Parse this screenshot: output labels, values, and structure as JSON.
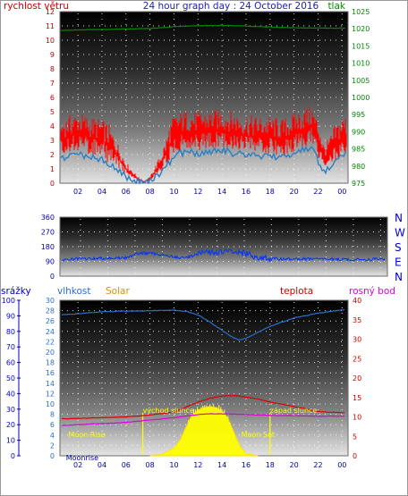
{
  "colors": {
    "wind": "#ff0000",
    "gust": "#2a7fc4",
    "pressure": "#008800",
    "direction": "#0033ff",
    "humidity": "#2a6fd0",
    "temperature": "#dd0000",
    "dewpoint": "#dd00dd",
    "solar": "#ffff00",
    "label_yellow": "#ffff00",
    "left_axis_blue": "#0000cc"
  },
  "chart_data": [
    {
      "type": "line",
      "title": "24 hour graph day : 24 October 2016",
      "left_axis_label": "rychlost větru",
      "right_axis_label": "tlak",
      "ylim_left": [
        0,
        12
      ],
      "yticks_left": [
        0,
        1,
        2,
        3,
        4,
        5,
        6,
        7,
        8,
        9,
        10,
        11,
        12
      ],
      "ylim_right": [
        975,
        1025
      ],
      "yticks_right": [
        975,
        980,
        985,
        990,
        995,
        1000,
        1005,
        1010,
        1015,
        1020,
        1025
      ],
      "x_tick_labels": [
        "02",
        "04",
        "06",
        "08",
        "10",
        "12",
        "14",
        "16",
        "18",
        "20",
        "22",
        "00"
      ],
      "x_tick_hours": [
        2,
        4,
        6,
        8,
        10,
        12,
        14,
        16,
        18,
        20,
        22,
        24
      ],
      "xlim_hours": [
        0.5,
        24.5
      ],
      "grid": true,
      "series": [
        {
          "key": "wind",
          "x": [
            0.5,
            1,
            2,
            3,
            4,
            5,
            6,
            7,
            7.5,
            8,
            9,
            10,
            11,
            12,
            13,
            14,
            15,
            16,
            17,
            18,
            19,
            20,
            21,
            21.5,
            22,
            22.5,
            23,
            24,
            24.5
          ],
          "y": [
            3.0,
            3.2,
            3.5,
            3.2,
            3.0,
            2.3,
            1.0,
            0.3,
            0.1,
            0.3,
            1.5,
            3.3,
            3.6,
            3.5,
            3.6,
            3.7,
            3.5,
            3.3,
            3.2,
            3.2,
            3.0,
            3.4,
            3.8,
            3.9,
            3.0,
            1.8,
            2.2,
            3.2,
            3.3
          ]
        },
        {
          "key": "gust",
          "x": [
            0.5,
            1,
            2,
            3,
            4,
            5,
            6,
            7,
            7.5,
            8,
            9,
            10,
            11,
            12,
            13,
            14,
            15,
            16,
            17,
            18,
            19,
            20,
            21,
            21.5,
            22,
            22.5,
            23,
            24,
            24.5
          ],
          "y": [
            1.7,
            1.8,
            2.0,
            1.9,
            1.7,
            1.2,
            0.4,
            0.1,
            0.0,
            0.1,
            0.8,
            1.9,
            2.2,
            2.1,
            2.2,
            2.3,
            2.1,
            2.0,
            1.9,
            1.9,
            1.8,
            2.1,
            2.4,
            2.4,
            1.6,
            0.8,
            1.2,
            1.9,
            2.0
          ]
        },
        {
          "key": "pressure",
          "x": [
            0.5,
            4,
            8,
            10,
            12,
            14,
            16,
            18,
            20,
            22,
            24.5
          ],
          "y": [
            1019.5,
            1019.8,
            1020.1,
            1020.6,
            1020.9,
            1021.0,
            1020.8,
            1020.5,
            1020.3,
            1020.2,
            1020.2
          ]
        }
      ]
    },
    {
      "type": "scatter",
      "right_axis_labels": [
        "N",
        "W",
        "S",
        "E",
        "N"
      ],
      "ylim": [
        0,
        360
      ],
      "yticks": [
        0,
        90,
        180,
        270,
        360
      ],
      "xlim_hours": [
        0.5,
        24.5
      ],
      "grid": true,
      "series": [
        {
          "key": "direction",
          "x": [
            0.5,
            2,
            4,
            5.5,
            6,
            7,
            8,
            9,
            9.5,
            10,
            11,
            12,
            13,
            14,
            15,
            16,
            18,
            20,
            22,
            24.5
          ],
          "y": [
            100,
            105,
            110,
            112,
            140,
            140,
            130,
            115,
            110,
            120,
            145,
            145,
            150,
            140,
            115,
            105,
            105,
            105,
            100,
            105
          ]
        }
      ]
    },
    {
      "type": "line",
      "labels": {
        "rain": "srážky",
        "humidity": "vlhkost",
        "solar": "Solar",
        "temperature": "teplota",
        "dewpoint": "rosný bod"
      },
      "ylim_rain": [
        0,
        100
      ],
      "yticks_rain": [
        0,
        10,
        20,
        30,
        40,
        50,
        60,
        70,
        80,
        90,
        100
      ],
      "ylim_left": [
        0,
        30
      ],
      "yticks_left": [
        0,
        2,
        4,
        6,
        8,
        10,
        12,
        14,
        16,
        18,
        20,
        22,
        24,
        26,
        28,
        30
      ],
      "ylim_right": [
        0,
        40
      ],
      "yticks_right": [
        0,
        5,
        10,
        15,
        20,
        25,
        30,
        35,
        40
      ],
      "x_tick_labels": [
        "02",
        "04",
        "06",
        "08",
        "10",
        "12",
        "14",
        "16",
        "18",
        "20",
        "22",
        "00"
      ],
      "x_tick_hours": [
        2,
        4,
        6,
        8,
        10,
        12,
        14,
        16,
        18,
        20,
        22,
        24
      ],
      "xlim_hours": [
        0.5,
        24.5
      ],
      "grid": true,
      "annotations": [
        {
          "text": "Moon Rise",
          "hour": 1.2,
          "value_left": 3.6
        },
        {
          "text": "východ slunce",
          "hour": 7.4,
          "value_left": 8.3
        },
        {
          "text": "západ slunce",
          "hour": 18.0,
          "value_left": 8.3
        },
        {
          "text": "Moon Set",
          "hour": 15.6,
          "value_left": 3.6
        },
        {
          "text": "Moonrise",
          "hour": 1.0,
          "value_left": -0.9
        }
      ],
      "markers": [
        {
          "key": "sunrise",
          "hour": 7.4
        },
        {
          "key": "sunset",
          "hour": 18.0
        }
      ],
      "series": [
        {
          "key": "humidity",
          "axis": "left",
          "x": [
            0.5,
            2,
            4,
            6,
            8,
            10,
            11,
            12,
            13,
            14,
            15,
            15.5,
            16,
            17,
            18,
            20,
            22,
            24.5
          ],
          "y": [
            27.2,
            27.4,
            27.8,
            27.9,
            28.0,
            28.1,
            27.9,
            27.2,
            25.8,
            24.2,
            22.7,
            22.3,
            22.7,
            23.8,
            25.0,
            26.6,
            27.5,
            28.3
          ]
        },
        {
          "key": "temperature",
          "axis": "right",
          "x": [
            0.5,
            2,
            4,
            6,
            8,
            10,
            11,
            12,
            13,
            14,
            15,
            16,
            17,
            18,
            20,
            22,
            24.5
          ],
          "y": [
            9.5,
            9.6,
            9.8,
            10.0,
            10.5,
            11.2,
            12.5,
            13.8,
            14.8,
            15.4,
            15.5,
            15.1,
            14.6,
            13.8,
            12.7,
            11.4,
            11.0
          ]
        },
        {
          "key": "dewpoint",
          "axis": "right",
          "x": [
            0.5,
            2,
            4,
            6,
            8,
            10,
            11,
            12,
            13,
            14,
            15,
            16,
            17,
            18,
            20,
            22,
            24.5
          ],
          "y": [
            7.8,
            8.0,
            8.3,
            8.6,
            9.2,
            9.8,
            10.2,
            10.6,
            10.8,
            10.8,
            10.7,
            10.6,
            10.5,
            10.4,
            10.3,
            10.2,
            10.2
          ]
        },
        {
          "key": "solar",
          "axis": "left",
          "x": [
            8,
            9,
            10,
            10.5,
            11,
            11.5,
            12,
            12.5,
            13,
            13.5,
            14,
            14.5,
            15,
            15.5,
            16,
            17
          ],
          "y": [
            0.0,
            0.3,
            1.5,
            3.0,
            5.5,
            7.8,
            8.8,
            9.3,
            9.5,
            9.3,
            8.7,
            7.2,
            4.5,
            1.8,
            0.4,
            0.0
          ]
        }
      ]
    }
  ]
}
